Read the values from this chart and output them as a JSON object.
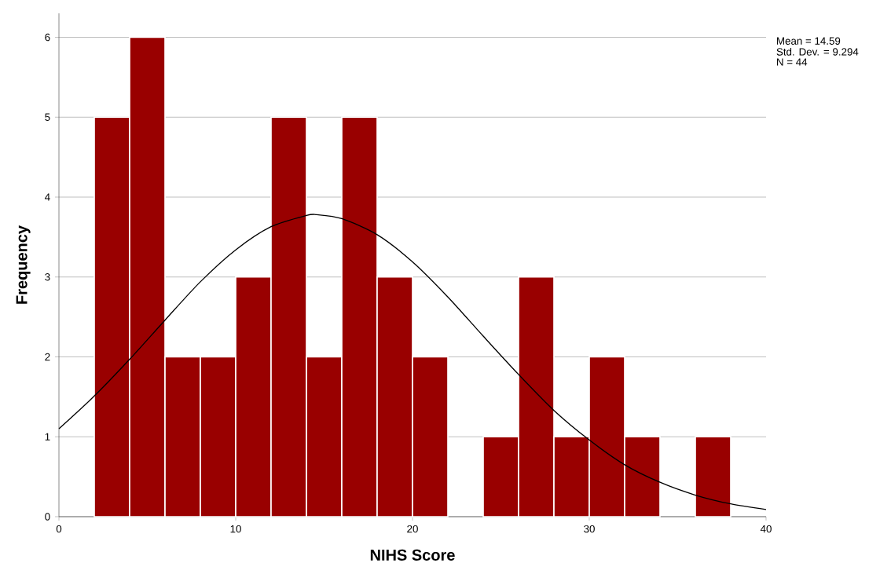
{
  "chart_data": {
    "type": "histogram",
    "xlabel": "NIHS Score",
    "ylabel": "Frequency",
    "bins": [
      2,
      4,
      6,
      8,
      10,
      12,
      14,
      16,
      18,
      20,
      22,
      24,
      26,
      28,
      30,
      32,
      34,
      36,
      38
    ],
    "values": [
      5,
      6,
      2,
      2,
      3,
      5,
      2,
      5,
      3,
      2,
      0,
      1,
      3,
      1,
      2,
      1,
      0,
      1
    ],
    "color": "#990000",
    "series": [
      {
        "type": "line",
        "color": "#000000",
        "x": [
          0,
          2,
          4,
          6,
          8,
          10,
          12,
          14,
          14.59,
          16,
          18,
          20,
          22,
          24,
          26,
          28,
          30,
          32,
          34,
          36,
          38,
          40
        ],
        "values": [
          1.1,
          1.51,
          1.97,
          2.46,
          2.94,
          3.34,
          3.63,
          3.77,
          3.78,
          3.73,
          3.53,
          3.19,
          2.75,
          2.26,
          1.78,
          1.33,
          0.96,
          0.65,
          0.43,
          0.27,
          0.16,
          0.09
        ]
      }
    ],
    "xlim": [
      0,
      40
    ],
    "xticks": [
      0,
      10,
      20,
      30,
      40
    ],
    "ylim": [
      0,
      6.3
    ],
    "yticks": [
      0,
      1,
      2,
      3,
      4,
      5,
      6
    ],
    "grid": "y",
    "annotations": [
      "Mean = 14.59",
      "Std. Dev. = 9.294",
      "N = 44"
    ]
  }
}
